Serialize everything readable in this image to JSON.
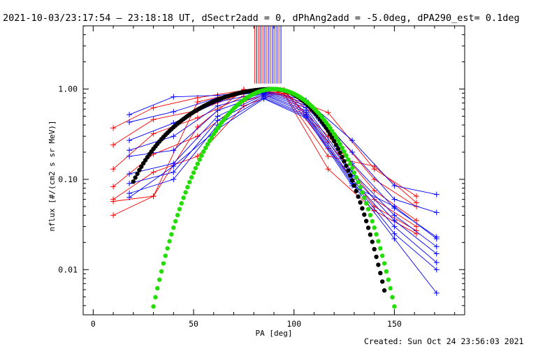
{
  "title": "2021-10-03/23:17:54 – 23:18:18 UT, dSectr2add = 0, dPhAng2add = -5.0deg, dPA290_est=  0.1deg",
  "footer": "Created: Sun Oct 24 23:56:03 2021",
  "chart_data": {
    "type": "line",
    "xlabel": "PA [deg]",
    "ylabel": "nflux [#/(cm2 s sr MeV)]",
    "xlim": [
      -5,
      185
    ],
    "ylim_log10": [
      -2.5,
      0.7
    ],
    "yscale": "log",
    "x_ticks": [
      0,
      50,
      100,
      150
    ],
    "x_tick_labels": [
      "0",
      "50",
      "100",
      "150"
    ],
    "y_ticks": [
      0.01,
      0.1,
      1.0
    ],
    "y_tick_labels": [
      "0.01",
      "0.10",
      "1.00"
    ],
    "colors": {
      "red": "#ff0000",
      "blue": "#0000ff",
      "black": "#000000",
      "green": "#22dd00"
    },
    "vertical_markers": {
      "colors": [
        "red",
        "blue"
      ],
      "x": [
        80.5,
        81.5,
        82.5,
        83.5,
        84.5,
        85.5,
        86.5,
        87.5,
        88.5,
        89.5,
        90.5,
        91.5,
        92.5,
        93.5
      ],
      "y_bottom": 1.15
    },
    "series": [
      {
        "color": "red",
        "x": [
          10,
          30,
          52,
          75,
          95,
          117,
          140,
          161
        ],
        "y": [
          0.37,
          0.62,
          0.8,
          0.97,
          0.85,
          0.55,
          0.13,
          0.065
        ]
      },
      {
        "color": "red",
        "x": [
          10,
          30,
          52,
          75,
          95,
          117,
          140,
          161
        ],
        "y": [
          0.24,
          0.46,
          0.58,
          0.9,
          0.93,
          0.4,
          0.1,
          0.05
        ]
      },
      {
        "color": "red",
        "x": [
          10,
          30,
          52,
          75,
          95,
          117,
          140,
          161
        ],
        "y": [
          0.13,
          0.32,
          0.48,
          0.83,
          0.95,
          0.3,
          0.075,
          0.035
        ]
      },
      {
        "color": "red",
        "x": [
          10,
          30,
          52,
          75,
          95,
          117,
          140,
          161
        ],
        "y": [
          0.083,
          0.19,
          0.3,
          0.73,
          0.98,
          0.26,
          0.06,
          0.03
        ]
      },
      {
        "color": "red",
        "x": [
          10,
          30,
          52,
          75,
          95,
          117,
          140,
          161
        ],
        "y": [
          0.06,
          0.12,
          0.18,
          0.65,
          0.96,
          0.22,
          0.05,
          0.027
        ]
      },
      {
        "color": "red",
        "x": [
          10,
          30,
          52,
          75,
          95,
          117,
          140,
          161
        ],
        "y": [
          0.04,
          0.065,
          0.38,
          0.99,
          0.9,
          0.18,
          0.14,
          0.055
        ]
      },
      {
        "color": "red",
        "x": [
          10,
          30,
          52,
          75,
          95,
          117,
          140,
          161
        ],
        "y": [
          0.057,
          0.065,
          0.72,
          0.95,
          0.88,
          0.13,
          0.045,
          0.025
        ]
      },
      {
        "color": "blue",
        "x": [
          18,
          40,
          62,
          85,
          106,
          129,
          150,
          171
        ],
        "y": [
          0.52,
          0.82,
          0.85,
          0.96,
          0.75,
          0.27,
          0.085,
          0.068
        ]
      },
      {
        "color": "blue",
        "x": [
          18,
          40,
          62,
          85,
          106,
          129,
          150,
          171
        ],
        "y": [
          0.43,
          0.56,
          0.8,
          0.94,
          0.7,
          0.2,
          0.06,
          0.043
        ]
      },
      {
        "color": "blue",
        "x": [
          18,
          40,
          62,
          85,
          106,
          129,
          150,
          171
        ],
        "y": [
          0.27,
          0.42,
          0.72,
          0.92,
          0.66,
          0.15,
          0.048,
          0.023
        ]
      },
      {
        "color": "blue",
        "x": [
          18,
          40,
          62,
          85,
          106,
          129,
          150,
          171
        ],
        "y": [
          0.21,
          0.3,
          0.65,
          0.9,
          0.62,
          0.12,
          0.04,
          0.018
        ]
      },
      {
        "color": "blue",
        "x": [
          18,
          40,
          62,
          85,
          106,
          129,
          150,
          171
        ],
        "y": [
          0.18,
          0.21,
          0.58,
          0.88,
          0.58,
          0.11,
          0.035,
          0.015
        ]
      },
      {
        "color": "blue",
        "x": [
          18,
          40,
          62,
          85,
          106,
          129,
          150,
          171
        ],
        "y": [
          0.115,
          0.15,
          0.5,
          0.86,
          0.55,
          0.1,
          0.03,
          0.012
        ]
      },
      {
        "color": "blue",
        "x": [
          18,
          40,
          62,
          85,
          106,
          129,
          150,
          171
        ],
        "y": [
          0.09,
          0.12,
          0.45,
          0.83,
          0.52,
          0.095,
          0.025,
          0.01
        ]
      },
      {
        "color": "blue",
        "x": [
          18,
          40,
          62,
          85,
          106,
          129,
          150,
          171
        ],
        "y": [
          0.07,
          0.1,
          0.4,
          0.8,
          0.5,
          0.09,
          0.022,
          0.0055
        ]
      },
      {
        "color": "blue",
        "x": [
          18,
          40,
          62,
          85,
          106,
          129,
          150,
          171
        ],
        "y": [
          0.063,
          0.14,
          0.36,
          0.78,
          0.48,
          0.085,
          0.05,
          0.022
        ]
      }
    ],
    "fits": [
      {
        "color": "black",
        "peak_x": 90,
        "peak_y": 1.0,
        "x_start": 20,
        "x_end": 145,
        "shape": "sin_power",
        "n": 2.2,
        "steep_side_right": true
      },
      {
        "color": "green",
        "peak_x": 90,
        "peak_y": 1.0,
        "x_start": 20,
        "x_end": 160,
        "shape": "sin_power",
        "n": 8.0
      }
    ]
  }
}
